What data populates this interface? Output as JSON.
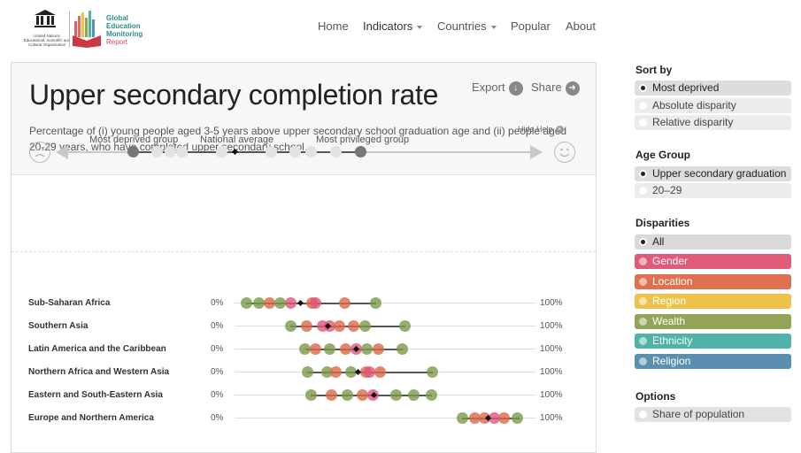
{
  "header": {
    "unesco_text": "United Nations Educational, Scientific and Cultural Organization",
    "gem_line1": "Global",
    "gem_line2": "Education",
    "gem_line3": "Monitoring",
    "gem_line4": "Report",
    "nav": [
      {
        "label": "Home",
        "active": false,
        "dropdown": false
      },
      {
        "label": "Indicators",
        "active": true,
        "dropdown": true
      },
      {
        "label": "Countries",
        "active": false,
        "dropdown": true
      },
      {
        "label": "Popular",
        "active": false,
        "dropdown": false
      },
      {
        "label": "About",
        "active": false,
        "dropdown": false
      }
    ]
  },
  "main": {
    "title": "Upper secondary completion rate",
    "subtitle": "Percentage of (i) young people aged 3-5 years above upper secondary school graduation age and (ii) people aged 20-29 years, who have completed upper secondary school.",
    "export_label": "Export",
    "share_label": "Share",
    "help": {
      "hide_label": "Hide Help",
      "most_deprived": "Most deprived group",
      "national_average": "National average",
      "most_privileged": "Most privileged group"
    },
    "rows": [
      {
        "label": "Sub-Saharan Africa",
        "min": "0%",
        "max": "100%"
      },
      {
        "label": "Southern Asia",
        "min": "0%",
        "max": "100%"
      },
      {
        "label": "Latin America and the Caribbean",
        "min": "0%",
        "max": "100%"
      },
      {
        "label": "Northern Africa and Western Asia",
        "min": "0%",
        "max": "100%"
      },
      {
        "label": "Eastern and South-Eastern Asia",
        "min": "0%",
        "max": "100%"
      },
      {
        "label": "Europe and Northern America",
        "min": "0%",
        "max": "100%"
      }
    ]
  },
  "sidebar": {
    "sort_by": {
      "heading": "Sort by",
      "options": [
        {
          "label": "Most deprived",
          "selected": true
        },
        {
          "label": "Absolute disparity",
          "selected": false
        },
        {
          "label": "Relative disparity",
          "selected": false
        }
      ]
    },
    "age_group": {
      "heading": "Age Group",
      "options": [
        {
          "label": "Upper secondary graduation",
          "selected": true
        },
        {
          "label": "20–29",
          "selected": false
        }
      ]
    },
    "disparities": {
      "heading": "Disparities",
      "options": [
        {
          "label": "All",
          "selected": true,
          "color": "#d9d9d9"
        },
        {
          "label": "Gender",
          "selected": false,
          "color": "#e05a79"
        },
        {
          "label": "Location",
          "selected": false,
          "color": "#de7150"
        },
        {
          "label": "Region",
          "selected": false,
          "color": "#ecc24a"
        },
        {
          "label": "Wealth",
          "selected": false,
          "color": "#90a656"
        },
        {
          "label": "Ethnicity",
          "selected": false,
          "color": "#4fb3a8"
        },
        {
          "label": "Religion",
          "selected": false,
          "color": "#5a8fb0"
        }
      ]
    },
    "options": {
      "heading": "Options",
      "items": [
        {
          "label": "Share of population",
          "selected": false
        }
      ]
    }
  }
}
